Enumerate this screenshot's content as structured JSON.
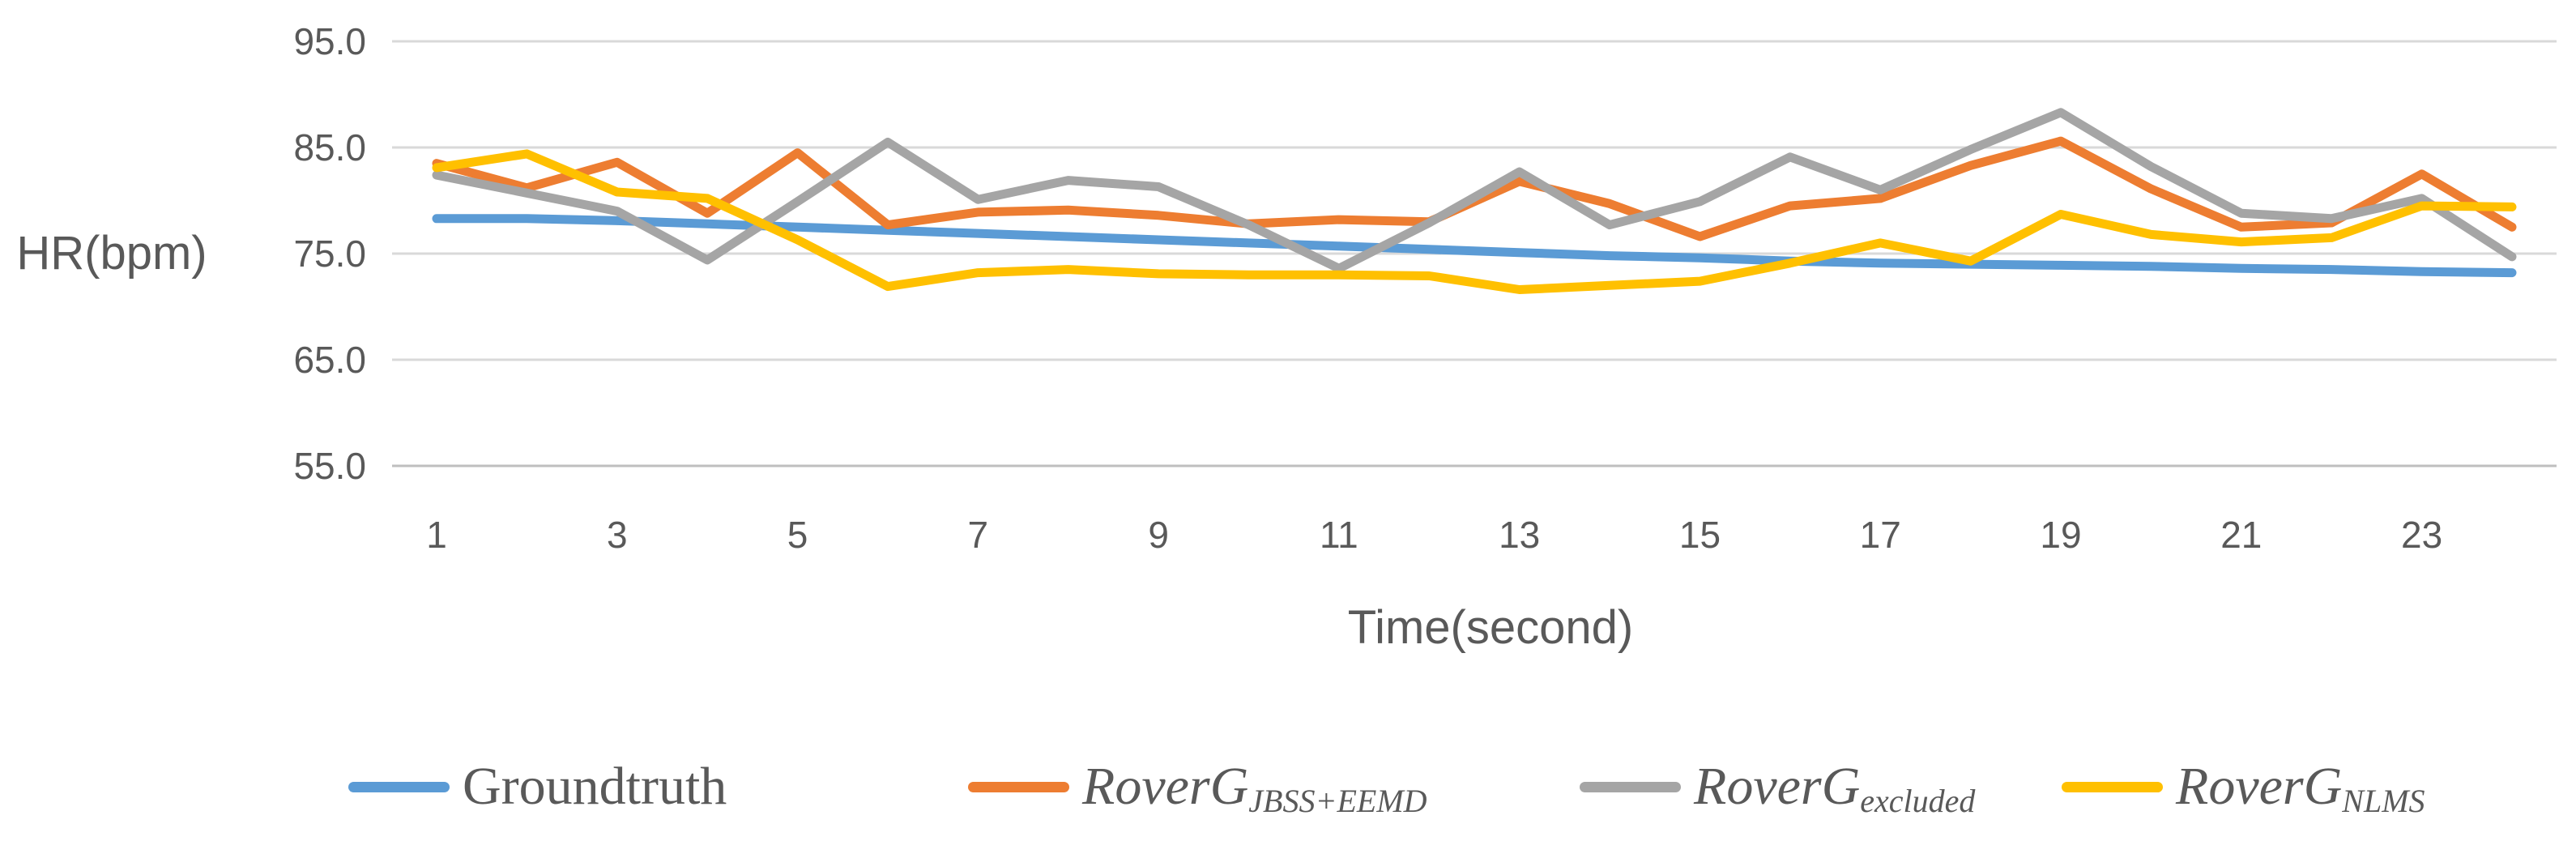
{
  "chart_data": {
    "type": "line",
    "title": "",
    "xlabel": "Time(second)",
    "ylabel": "HR(bpm)",
    "x": [
      1,
      2,
      3,
      4,
      5,
      6,
      7,
      8,
      9,
      10,
      11,
      12,
      13,
      14,
      15,
      16,
      17,
      18,
      19,
      20,
      21,
      22,
      23,
      24
    ],
    "x_tick_labels": [
      "1",
      "3",
      "5",
      "7",
      "9",
      "11",
      "13",
      "15",
      "17",
      "19",
      "21",
      "23"
    ],
    "y_ticks": [
      95.0,
      85.0,
      75.0,
      65.0,
      55.0
    ],
    "y_tick_labels": [
      "95.0",
      "85.0",
      "75.0",
      "65.0",
      "55.0"
    ],
    "ylim": [
      55.0,
      95.0
    ],
    "grid": "horizontal",
    "legend_position": "bottom",
    "series": [
      {
        "name": "Groundtruth",
        "label_main": "Groundtruth",
        "label_sub": "",
        "italic": false,
        "color": "#5B9BD5",
        "values": [
          78.3,
          78.3,
          78.1,
          77.8,
          77.5,
          77.2,
          76.9,
          76.6,
          76.3,
          76.0,
          75.7,
          75.4,
          75.1,
          74.8,
          74.6,
          74.3,
          74.1,
          74.0,
          73.9,
          73.8,
          73.6,
          73.5,
          73.3,
          73.2
        ]
      },
      {
        "name": "RoverG_JBSS+EEMD",
        "label_main": "RoverG",
        "label_sub": "JBSS+EEMD",
        "italic": true,
        "color": "#ED7D31",
        "values": [
          83.5,
          81.2,
          83.6,
          78.8,
          84.5,
          77.7,
          78.9,
          79.1,
          78.6,
          77.8,
          78.2,
          78.0,
          81.8,
          79.7,
          76.6,
          79.5,
          80.2,
          83.3,
          85.6,
          81.1,
          77.5,
          77.9,
          82.5,
          77.5
        ]
      },
      {
        "name": "RoverG_excluded",
        "label_main": "RoverG",
        "label_sub": "excluded",
        "italic": true,
        "color": "#A5A5A5",
        "values": [
          82.4,
          80.7,
          79.0,
          74.4,
          79.9,
          85.5,
          80.1,
          81.9,
          81.3,
          77.7,
          73.6,
          77.9,
          82.7,
          77.7,
          79.9,
          84.1,
          81.0,
          84.8,
          88.3,
          83.2,
          78.8,
          78.3,
          80.2,
          74.7
        ]
      },
      {
        "name": "RoverG_NLMS",
        "label_main": "RoverG",
        "label_sub": "NLMS",
        "italic": true,
        "color": "#FFC000",
        "values": [
          83.1,
          84.4,
          80.8,
          80.2,
          76.3,
          71.9,
          73.2,
          73.5,
          73.1,
          73.0,
          73.0,
          72.9,
          71.6,
          72.0,
          72.4,
          74.1,
          76.0,
          74.3,
          78.7,
          76.8,
          76.1,
          76.5,
          79.5,
          79.4
        ]
      }
    ],
    "colors": {
      "gridline": "#D9D9D9",
      "axis_line": "#BFBFBF",
      "text": "#595959"
    }
  }
}
